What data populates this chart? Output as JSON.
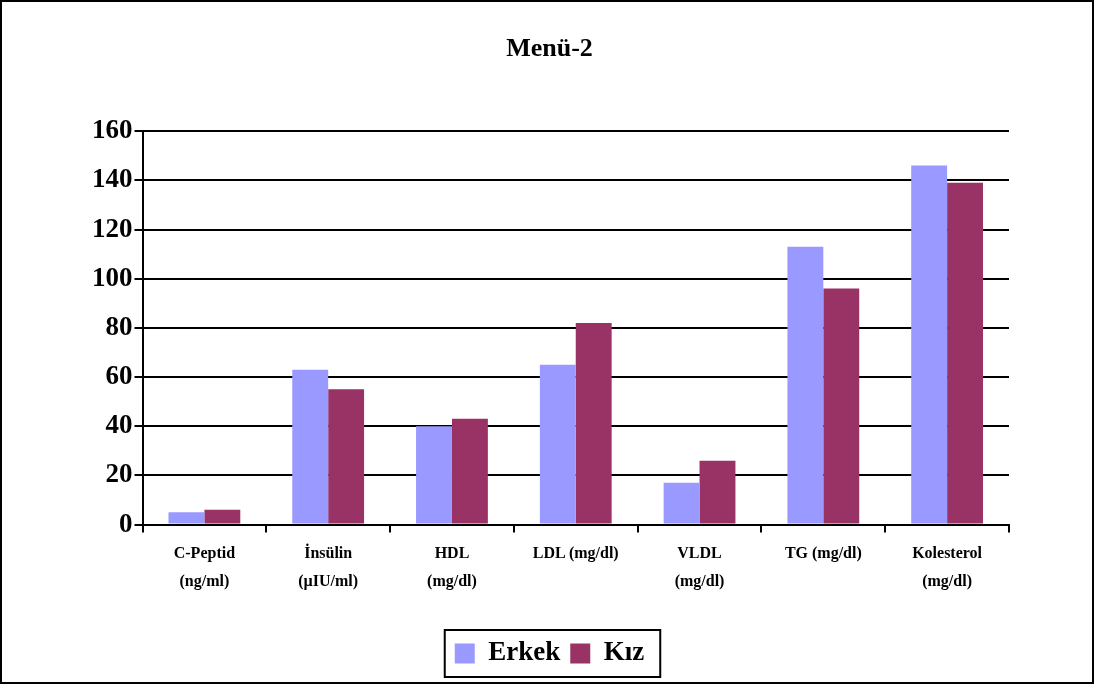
{
  "chart_data": {
    "type": "bar",
    "title": "Menü-2",
    "categories": [
      "C-Peptid\n(ng/ml)",
      "İnsülin\n(µIU/ml)",
      "HDL\n(mg/dl)",
      "LDL (mg/dl)",
      "VLDL\n(mg/dl)",
      "TG (mg/dl)",
      "Kolesterol\n(mg/dl)"
    ],
    "series": [
      {
        "name": "Erkek",
        "color": "#9999ff",
        "values": [
          5,
          63,
          40,
          65,
          17,
          113,
          146
        ]
      },
      {
        "name": "Kız",
        "color": "#993366",
        "values": [
          6,
          55,
          43,
          82,
          26,
          96,
          139
        ]
      }
    ],
    "ylim": [
      0,
      160
    ],
    "yticks": [
      0,
      20,
      40,
      60,
      80,
      100,
      120,
      140,
      160
    ],
    "grid": "y",
    "legend": "bottom"
  }
}
